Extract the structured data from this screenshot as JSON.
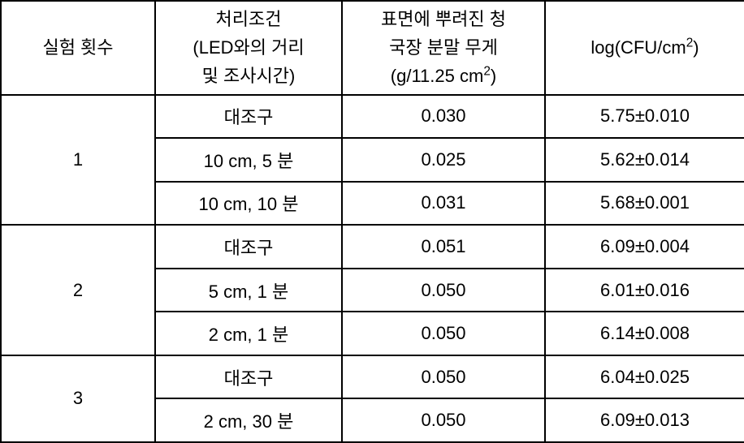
{
  "headers": {
    "col1": "실험 횟수",
    "col2": "처리조건\n(LED와의 거리\n및 조사시간)",
    "col3_line1": "표면에 뿌려진 청",
    "col3_line2": "국장 분말 무게",
    "col3_line3_prefix": "(g/11.25 cm",
    "col3_line3_suffix": ")",
    "col4_prefix": "log(CFU/cm",
    "col4_suffix": ")"
  },
  "groups": [
    {
      "experiment": "1",
      "rows": [
        {
          "condition": "대조구",
          "weight": "0.030",
          "logcfu": "5.75±0.010"
        },
        {
          "condition": "10 cm, 5 분",
          "weight": "0.025",
          "logcfu": "5.62±0.014"
        },
        {
          "condition": "10 cm, 10 분",
          "weight": "0.031",
          "logcfu": "5.68±0.001"
        }
      ]
    },
    {
      "experiment": "2",
      "rows": [
        {
          "condition": "대조구",
          "weight": "0.051",
          "logcfu": "6.09±0.004"
        },
        {
          "condition": "5 cm, 1 분",
          "weight": "0.050",
          "logcfu": "6.01±0.016"
        },
        {
          "condition": "2 cm, 1 분",
          "weight": "0.050",
          "logcfu": "6.14±0.008"
        }
      ]
    },
    {
      "experiment": "3",
      "rows": [
        {
          "condition": "대조구",
          "weight": "0.050",
          "logcfu": "6.04±0.025"
        },
        {
          "condition": "2 cm, 30 분",
          "weight": "0.050",
          "logcfu": "6.09±0.013"
        }
      ]
    }
  ]
}
